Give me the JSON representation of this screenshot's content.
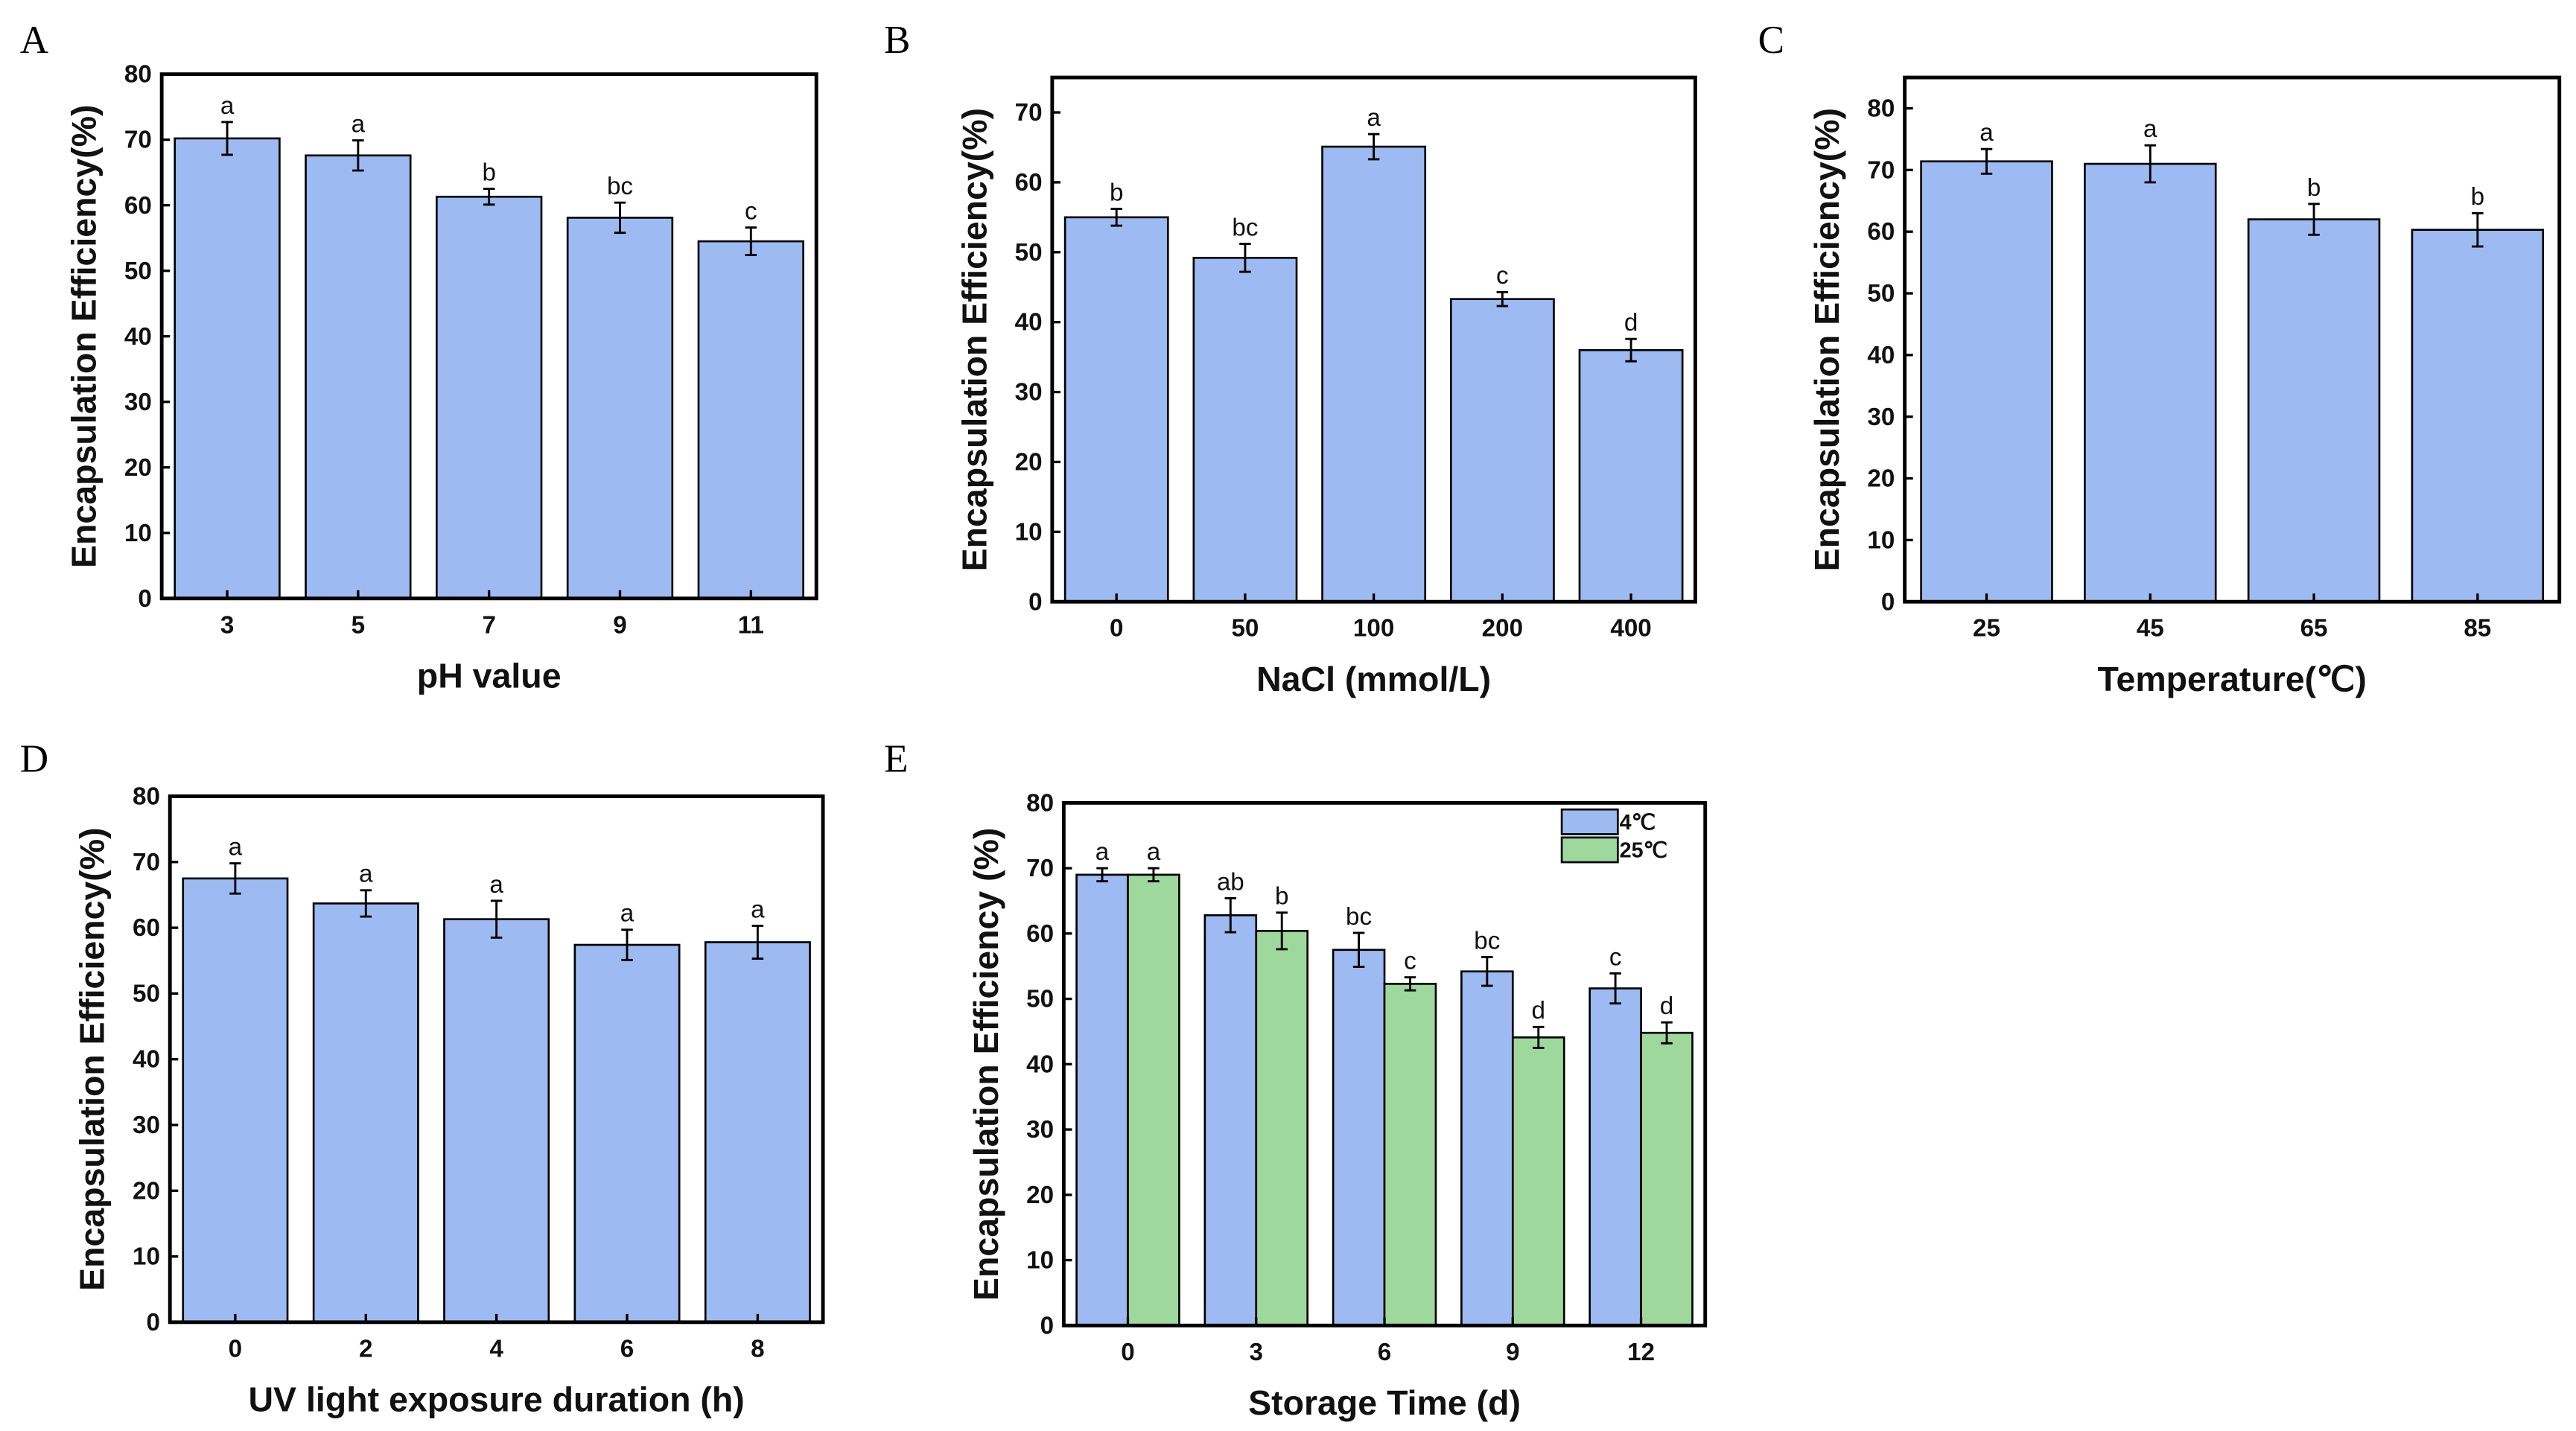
{
  "colors": {
    "blue": "#9dbbf2",
    "green": "#9fd89c",
    "stroke": "#000000"
  },
  "chart_data": [
    {
      "panel": "A",
      "type": "bar",
      "xlabel": "pH value",
      "ylabel": "Encapsulation Efficiency(%)",
      "ylim": [
        0,
        80
      ],
      "yticks": [
        0,
        10,
        20,
        30,
        40,
        50,
        60,
        70,
        80
      ],
      "categories": [
        "3",
        "5",
        "7",
        "9",
        "11"
      ],
      "series": [
        {
          "name": "EE",
          "color": "blue",
          "values": [
            70.2,
            67.6,
            61.3,
            58.1,
            54.5
          ],
          "errors": [
            2.5,
            2.3,
            1.2,
            2.3,
            2.1
          ],
          "labels": [
            "a",
            "a",
            "b",
            "bc",
            "c"
          ]
        }
      ]
    },
    {
      "panel": "B",
      "type": "bar",
      "xlabel": "NaCl (mmol/L)",
      "ylabel": "Encapsulation Efficiency(%)",
      "ylim": [
        0,
        75
      ],
      "yticks": [
        0,
        10,
        20,
        30,
        40,
        50,
        60,
        70
      ],
      "categories": [
        "0",
        "50",
        "100",
        "200",
        "400"
      ],
      "series": [
        {
          "name": "EE",
          "color": "blue",
          "values": [
            55.0,
            49.2,
            65.1,
            43.3,
            36.0
          ],
          "errors": [
            1.2,
            2.0,
            1.8,
            1.0,
            1.6
          ],
          "labels": [
            "b",
            "bc",
            "a",
            "c",
            "d"
          ]
        }
      ]
    },
    {
      "panel": "C",
      "type": "bar",
      "xlabel": "Temperature(℃)",
      "ylabel": "Encapsulation Efficiency(%)",
      "ylim": [
        0,
        85
      ],
      "yticks": [
        0,
        10,
        20,
        30,
        40,
        50,
        60,
        70,
        80
      ],
      "categories": [
        "25",
        "45",
        "65",
        "85"
      ],
      "series": [
        {
          "name": "EE",
          "color": "blue",
          "values": [
            71.4,
            71.0,
            62.0,
            60.3
          ],
          "errors": [
            2.0,
            3.0,
            2.5,
            2.7
          ],
          "labels": [
            "a",
            "a",
            "b",
            "b"
          ]
        }
      ]
    },
    {
      "panel": "D",
      "type": "bar",
      "xlabel": "UV light exposure duration (h)",
      "ylabel": "Encapsulation Efficiency(%)",
      "ylim": [
        0,
        80
      ],
      "yticks": [
        0,
        10,
        20,
        30,
        40,
        50,
        60,
        70,
        80
      ],
      "categories": [
        "0",
        "2",
        "4",
        "6",
        "8"
      ],
      "series": [
        {
          "name": "EE",
          "color": "blue",
          "values": [
            67.5,
            63.7,
            61.3,
            57.4,
            57.8
          ],
          "errors": [
            2.3,
            2.0,
            2.8,
            2.3,
            2.5
          ],
          "labels": [
            "a",
            "a",
            "a",
            "a",
            "a"
          ]
        }
      ]
    },
    {
      "panel": "E",
      "type": "bar",
      "xlabel": "Storage Time (d)",
      "ylabel": "Encapsulation Efficiency (%)",
      "ylim": [
        0,
        80
      ],
      "yticks": [
        0,
        10,
        20,
        30,
        40,
        50,
        60,
        70,
        80
      ],
      "categories": [
        "0",
        "3",
        "6",
        "9",
        "12"
      ],
      "legend": "top-right",
      "series": [
        {
          "name": "4℃",
          "color": "blue",
          "values": [
            69.0,
            62.8,
            57.5,
            54.2,
            51.6
          ],
          "errors": [
            1.0,
            2.6,
            2.6,
            2.2,
            2.3
          ],
          "labels": [
            "a",
            "ab",
            "bc",
            "bc",
            "c"
          ]
        },
        {
          "name": "25℃",
          "color": "green",
          "values": [
            69.0,
            60.4,
            52.3,
            44.1,
            44.8
          ],
          "errors": [
            1.0,
            2.8,
            1.0,
            1.6,
            1.6
          ],
          "labels": [
            "a",
            "b",
            "c",
            "d",
            "d"
          ]
        }
      ]
    }
  ]
}
